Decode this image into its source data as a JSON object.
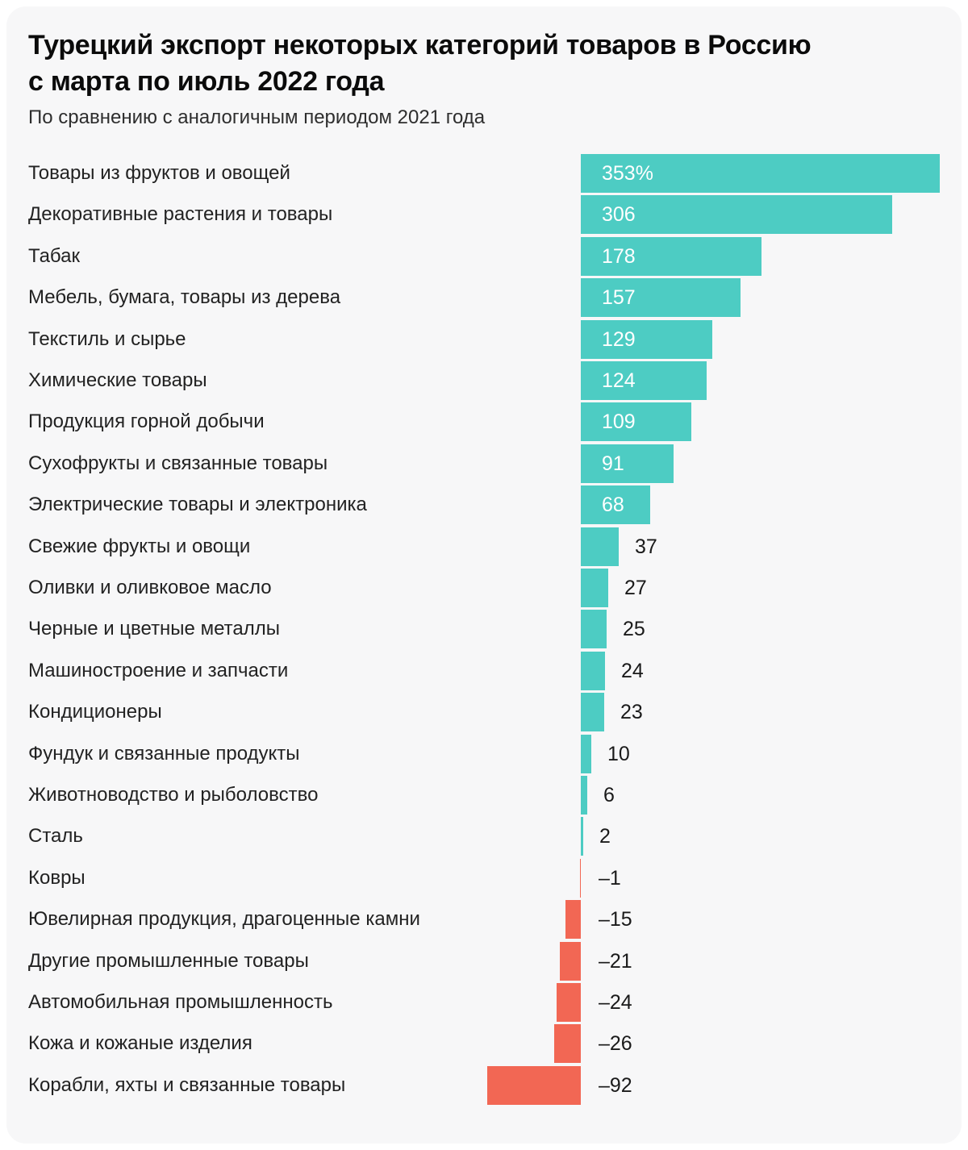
{
  "header": {
    "title_line1": "Турецкий экспорт некоторых категорий товаров в Россию",
    "title_line2": "с марта по июль 2022 года",
    "subtitle": "По сравнению с аналогичным периодом 2021 года"
  },
  "chart_data": {
    "type": "bar",
    "orientation": "horizontal",
    "title": "Турецкий экспорт некоторых категорий товаров в Россию с марта по июль 2022 года",
    "subtitle": "По сравнению с аналогичным периодом 2021 года",
    "unit": "percent change vs same period 2021",
    "xlim": [
      -92,
      353
    ],
    "grid": false,
    "legend": false,
    "categories": [
      "Товары из фруктов и овощей",
      "Декоративные растения и товары",
      "Табак",
      "Мебель, бумага, товары из дерева",
      "Текстиль и сырье",
      "Химические товары",
      "Продукция горной добычи",
      "Сухофрукты и связанные товары",
      "Электрические товары и электроника",
      "Свежие фрукты и овощи",
      "Оливки и оливковое масло",
      "Черные и цветные металлы",
      "Машиностроение и запчасти",
      "Кондиционеры",
      "Фундук и связанные продукты",
      "Животноводство и рыболовство",
      "Сталь",
      "Ковры",
      "Ювелирная продукция, драгоценные камни",
      "Другие промышленные товары",
      "Автомобильная промышленность",
      "Кожа и кожаные изделия",
      "Корабли, яхты и связанные товары"
    ],
    "values": [
      353,
      306,
      178,
      157,
      129,
      124,
      109,
      91,
      68,
      37,
      27,
      25,
      24,
      23,
      10,
      6,
      2,
      -1,
      -15,
      -21,
      -24,
      -26,
      -92
    ],
    "value_labels": [
      "353%",
      "306",
      "178",
      "157",
      "129",
      "124",
      "109",
      "91",
      "68",
      "37",
      "27",
      "25",
      "24",
      "23",
      "10",
      "6",
      "2",
      "–1",
      "–15",
      "–21",
      "–24",
      "–26",
      "–92"
    ],
    "colors": {
      "positive": "#4dccc3",
      "negative": "#f26754",
      "card_background": "#f7f7f8",
      "page_background": "#ffffff",
      "label_text": "#222222",
      "value_inside_text": "#ffffff",
      "value_outside_text": "#1a1a1a"
    }
  }
}
